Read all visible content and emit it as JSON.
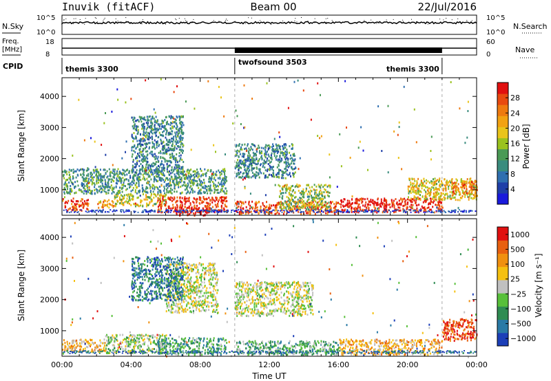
{
  "header": {
    "station": "Inuvik (fitACF)",
    "beam": "Beam 00",
    "date": "22/Jul/2016"
  },
  "status_panel": {
    "nsky_label": "N.Sky",
    "nsky_ticks": [
      "10^5",
      "10^0"
    ],
    "nsearch_label": "N.Search",
    "nsearch_ticks": [
      "10^5",
      "10^0"
    ],
    "freq_label": "Freq.",
    "freq_unit": "[MHz]",
    "freq_ticks": [
      "18",
      "8"
    ],
    "nave_label": "Nave",
    "nave_ticks": [
      "60",
      "0"
    ],
    "cpid_label": "CPID",
    "cpid_segments": [
      {
        "name": "themis 3300",
        "start_hour": 0,
        "end_hour": 10
      },
      {
        "name": "twofsound 3503",
        "start_hour": 10,
        "end_hour": 22
      },
      {
        "name": "themis 3300",
        "start_hour": 22,
        "end_hour": 24
      }
    ]
  },
  "chart_data": [
    {
      "type": "heatmap",
      "quantity": "power",
      "xlabel": "",
      "ylabel": "Slant Range [km]",
      "xlim": [
        0,
        24
      ],
      "ylim": [
        180,
        4600
      ],
      "y_ticks": [
        "1000",
        "2000",
        "3000",
        "4000"
      ],
      "colorbar_label": "Power [dB]",
      "colorbar_ticks": [
        "4",
        "8",
        "12",
        "16",
        "20",
        "24",
        "28"
      ],
      "colorscale": [
        "#1a1adc",
        "#1f3fa8",
        "#2f6fb0",
        "#3a8c7e",
        "#4a9a55",
        "#9ac21e",
        "#e9c41a",
        "#f2a212",
        "#ee7a10",
        "#e84a10",
        "#e11010"
      ],
      "echo_regions": [
        {
          "t0": 0.0,
          "t1": 1.5,
          "r0": 350,
          "r1": 750,
          "level": 0.85
        },
        {
          "t0": 2.0,
          "t1": 3.0,
          "r0": 450,
          "r1": 700,
          "level": 0.7
        },
        {
          "t0": 3.0,
          "t1": 6.0,
          "r0": 500,
          "r1": 900,
          "level": 0.55
        },
        {
          "t0": 5.5,
          "t1": 9.5,
          "r0": 300,
          "r1": 800,
          "level": 0.9
        },
        {
          "t0": 6.5,
          "t1": 8.5,
          "r0": 200,
          "r1": 450,
          "level": 1.0
        },
        {
          "t0": 0.0,
          "t1": 9.5,
          "r0": 900,
          "r1": 1700,
          "level": 0.35
        },
        {
          "t0": 4.0,
          "t1": 7.0,
          "r0": 1600,
          "r1": 3400,
          "level": 0.3
        },
        {
          "t0": 10.0,
          "t1": 13.5,
          "r0": 1400,
          "r1": 2500,
          "level": 0.3
        },
        {
          "t0": 10.0,
          "t1": 16.0,
          "r0": 250,
          "r1": 650,
          "level": 0.85
        },
        {
          "t0": 12.5,
          "t1": 15.5,
          "r0": 400,
          "r1": 1200,
          "level": 0.5
        },
        {
          "t0": 16.0,
          "t1": 22.0,
          "r0": 300,
          "r1": 750,
          "level": 0.95
        },
        {
          "t0": 20.0,
          "t1": 24.0,
          "r0": 700,
          "r1": 1400,
          "level": 0.6
        },
        {
          "t0": 22.5,
          "t1": 24.0,
          "r0": 900,
          "r1": 1300,
          "level": 0.8
        }
      ]
    },
    {
      "type": "heatmap",
      "quantity": "velocity",
      "xlabel": "Time UT",
      "ylabel": "Slant Range [km]",
      "xlim": [
        0,
        24
      ],
      "ylim": [
        180,
        4600
      ],
      "x_ticks": [
        "00:00",
        "04:00",
        "08:00",
        "12:00",
        "16:00",
        "20:00",
        "00:00"
      ],
      "y_ticks": [
        "1000",
        "2000",
        "3000",
        "4000"
      ],
      "colorbar_label": "Velocity [m s⁻¹]",
      "colorbar_ticks": [
        "1000",
        "500",
        "100",
        "25",
        "−25",
        "−100",
        "−500",
        "−1000"
      ],
      "colorscale": [
        "#1c3fb8",
        "#2a7aa6",
        "#2f8c52",
        "#58c03a",
        "#c0c0c0",
        "#f5c010",
        "#f09010",
        "#e86010",
        "#e01010"
      ],
      "echo_regions": [
        {
          "t0": 0.0,
          "t1": 2.5,
          "r0": 350,
          "r1": 750,
          "level": 0.62
        },
        {
          "t0": 2.5,
          "t1": 6.0,
          "r0": 300,
          "r1": 900,
          "level": 0.45
        },
        {
          "t0": 5.5,
          "t1": 9.5,
          "r0": 250,
          "r1": 800,
          "level": 0.3
        },
        {
          "t0": 6.0,
          "t1": 9.0,
          "r0": 1600,
          "r1": 3200,
          "level": 0.5
        },
        {
          "t0": 4.0,
          "t1": 7.0,
          "r0": 2000,
          "r1": 3400,
          "level": 0.2
        },
        {
          "t0": 10.0,
          "t1": 14.5,
          "r0": 1500,
          "r1": 2600,
          "level": 0.5
        },
        {
          "t0": 10.0,
          "t1": 16.0,
          "r0": 250,
          "r1": 700,
          "level": 0.35
        },
        {
          "t0": 16.0,
          "t1": 22.0,
          "r0": 250,
          "r1": 750,
          "level": 0.65
        },
        {
          "t0": 22.0,
          "t1": 24.0,
          "r0": 700,
          "r1": 1400,
          "level": 0.9
        }
      ]
    }
  ]
}
